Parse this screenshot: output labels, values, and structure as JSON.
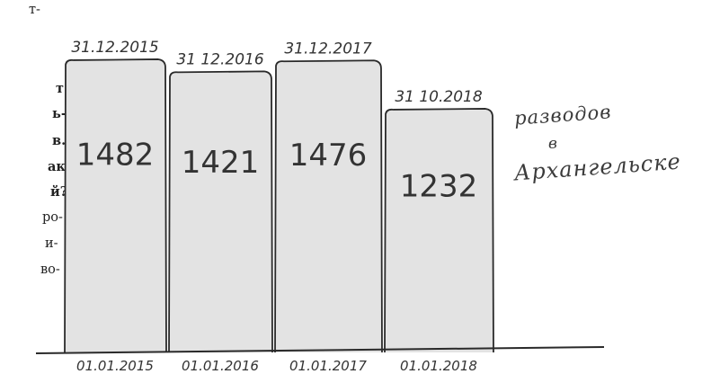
{
  "article_fragments": [
    {
      "text": "т-",
      "bold": false
    },
    {
      "text": "т",
      "bold": true
    },
    {
      "text": "ь-",
      "bold": true
    },
    {
      "text": "в.",
      "bold": true
    },
    {
      "text": "ак",
      "bold": true
    },
    {
      "text": "й?",
      "bold": true
    },
    {
      "text": "ро-",
      "bold": false
    },
    {
      "text": "и-",
      "bold": false
    },
    {
      "text": "во-",
      "bold": false
    }
  ],
  "chart_data": {
    "type": "bar",
    "categories": [
      "31.12.2015",
      "31.12.2016",
      "31.12.2017",
      "31.10.2018"
    ],
    "start_labels": [
      "01.01.2015",
      "01.01.2016",
      "01.01.2017",
      "01.01.2018"
    ],
    "values": [
      1482,
      1421,
      1476,
      1232
    ],
    "data_labels": [
      "1482",
      "1421",
      "1476",
      "1232"
    ],
    "top_labels": [
      "31.12.2015",
      "31 12.2016",
      "31.12.2017",
      "31 10.2018"
    ],
    "bottom_labels": [
      "01.01.2015",
      "01.01.2016",
      "01.01.2017",
      "01.01.2018"
    ],
    "caption": [
      "разводов",
      "в",
      "Архангельске"
    ],
    "title": "",
    "xlabel": "",
    "ylabel": "",
    "ylim": [
      0,
      1500
    ],
    "grid": false,
    "legend": "none",
    "colors": {
      "bar_fill": "#e3e3e3",
      "bar_stroke": "#2a2a2a",
      "text": "#333333"
    }
  }
}
